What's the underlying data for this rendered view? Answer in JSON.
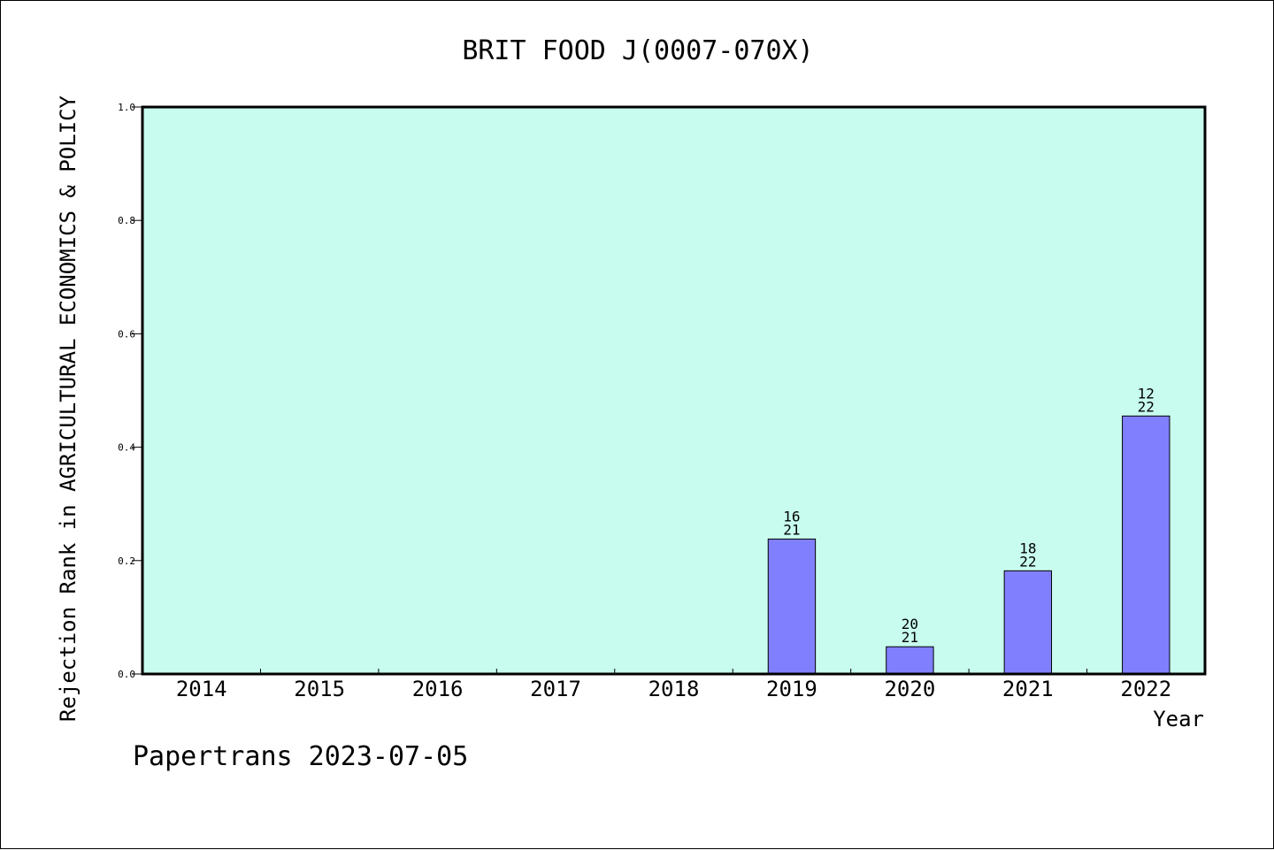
{
  "chart_data": {
    "type": "bar",
    "title": "BRIT FOOD J(0007-070X)",
    "xlabel": "Year",
    "ylabel": "Rejection Rank in AGRICULTURAL ECONOMICS & POLICY",
    "ylim": [
      0,
      1.0
    ],
    "yticks": [
      "0.0",
      "0.2",
      "0.4",
      "0.6",
      "0.8",
      "1.0"
    ],
    "categories": [
      "2014",
      "2015",
      "2016",
      "2017",
      "2018",
      "2019",
      "2020",
      "2021",
      "2022"
    ],
    "values": [
      0,
      0,
      0,
      0,
      0,
      0.238,
      0.048,
      0.182,
      0.455
    ],
    "labels": [
      null,
      null,
      null,
      null,
      null,
      {
        "top": "16",
        "bottom": "21"
      },
      {
        "top": "20",
        "bottom": "21"
      },
      {
        "top": "18",
        "bottom": "22"
      },
      {
        "top": "12",
        "bottom": "22"
      }
    ],
    "grid": false,
    "colors": {
      "plot_background": "#c8fcee",
      "bar_fill": "#8080ff",
      "axis": "#000000"
    }
  },
  "footer": "Papertrans 2023-07-05"
}
